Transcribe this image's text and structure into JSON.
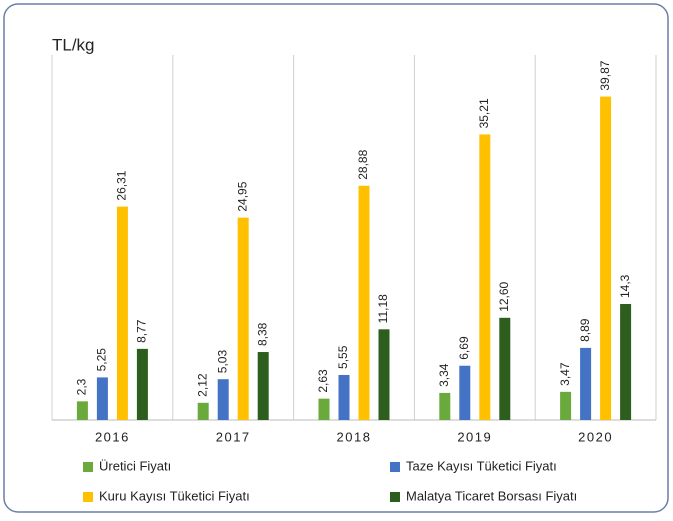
{
  "chart_data": {
    "type": "bar",
    "y_label": "TL/kg",
    "categories": [
      "2016",
      "2017",
      "2018",
      "2019",
      "2020"
    ],
    "series": [
      {
        "name": "Üretici Fiyatı",
        "color": "#6aaa3c",
        "values": [
          2.3,
          2.12,
          2.63,
          3.34,
          3.47
        ],
        "value_labels": [
          "2,3",
          "2,12",
          "2,63",
          "3,34",
          "3,47"
        ]
      },
      {
        "name": "Taze Kayısı Tüketici Fiyatı",
        "color": "#4472c4",
        "values": [
          5.25,
          5.03,
          5.55,
          6.69,
          8.89
        ],
        "value_labels": [
          "5,25",
          "5,03",
          "5,55",
          "6,69",
          "8,89"
        ]
      },
      {
        "name": "Kuru Kayısı Tüketici Fiyatı",
        "color": "#ffc000",
        "values": [
          26.31,
          24.95,
          28.88,
          35.21,
          39.87
        ],
        "value_labels": [
          "26,31",
          "24,95",
          "28,88",
          "35,21",
          "39,87"
        ]
      },
      {
        "name": "Malatya Ticaret Borsası Fiyatı",
        "color": "#2e5e1e",
        "values": [
          8.77,
          8.38,
          11.18,
          12.6,
          14.3
        ],
        "value_labels": [
          "8,77",
          "8,38",
          "11,18",
          "12,60",
          "14,3"
        ]
      }
    ],
    "ylim": [
      0,
      45
    ]
  }
}
